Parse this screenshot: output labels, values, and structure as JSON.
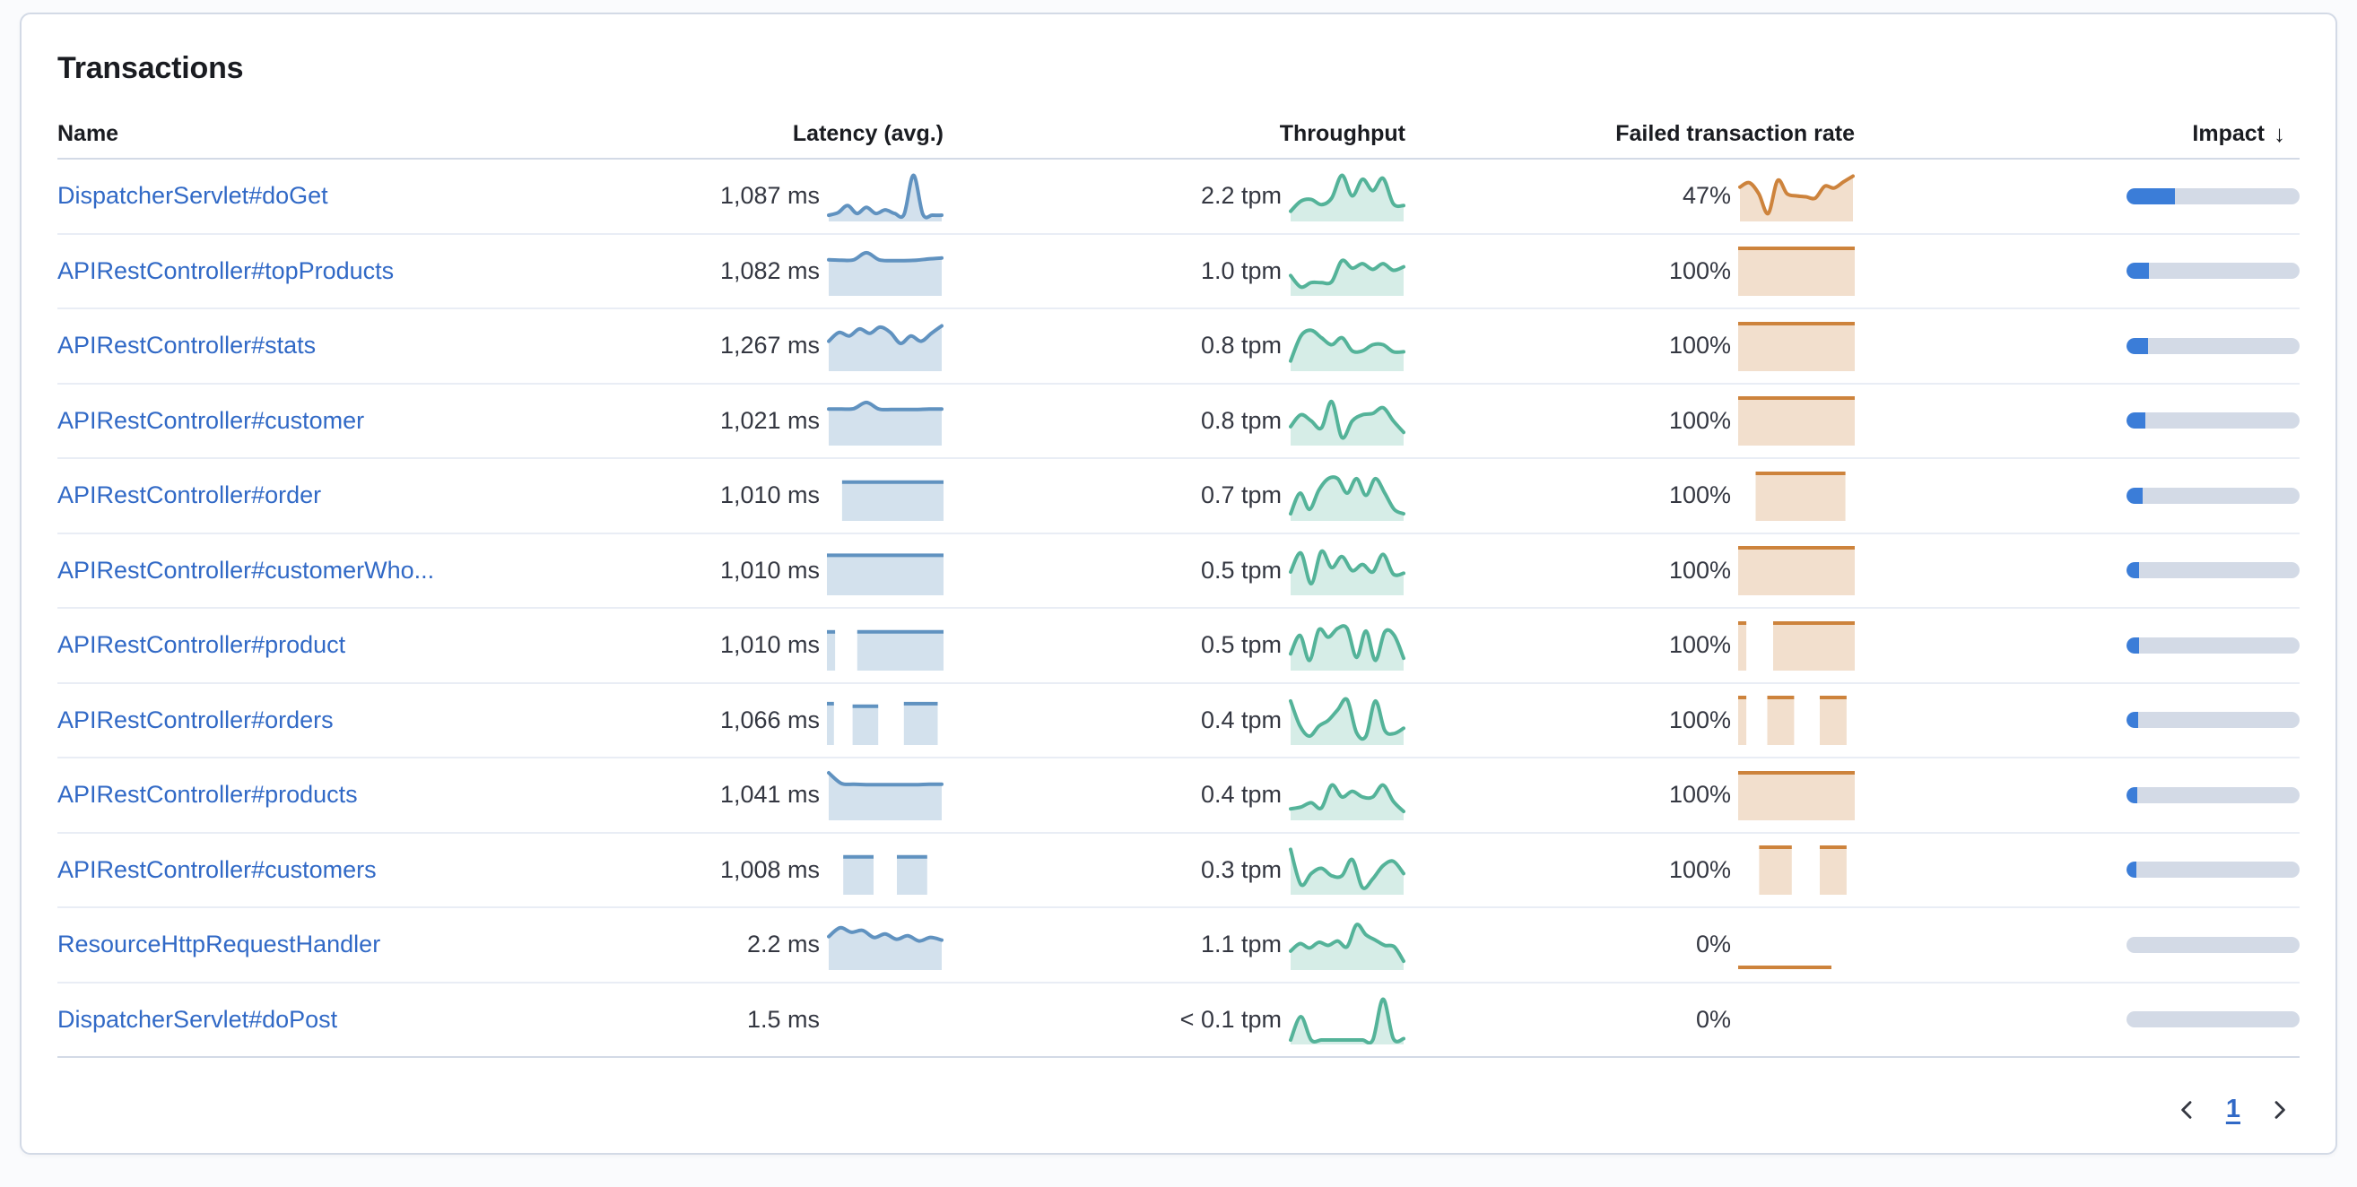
{
  "card": {
    "title": "Transactions"
  },
  "table": {
    "columns": {
      "name": "Name",
      "latency": "Latency (avg.)",
      "throughput": "Throughput",
      "failed_rate": "Failed transaction rate",
      "impact": "Impact",
      "sort_icon": "↓",
      "sort_icon_name": "sort-descending-arrow-icon"
    },
    "rows": [
      {
        "name": "DispatcherServlet#doGet",
        "latency": "1,087 ms",
        "throughput": "2.2 tpm",
        "failed_rate": "47%",
        "impact_pct": 28,
        "sparklines": {
          "latency": {
            "values": [
              0.06,
              0.12,
              0.28,
              0.1,
              0.24,
              0.1,
              0.18,
              0.1,
              0.08,
              0.97,
              0.08,
              0.06,
              0.06
            ]
          },
          "throughput": {
            "values": [
              0.15,
              0.38,
              0.42,
              0.3,
              0.45,
              0.97,
              0.5,
              0.88,
              0.62,
              0.9,
              0.32,
              0.28
            ]
          },
          "failed_rate": {
            "values": [
              0.7,
              0.8,
              0.55,
              0.1,
              0.85,
              0.55,
              0.5,
              0.48,
              0.45,
              0.72,
              0.68,
              0.82,
              0.95
            ]
          }
        }
      },
      {
        "name": "APIRestController#topProducts",
        "latency": "1,082 ms",
        "throughput": "1.0 tpm",
        "failed_rate": "100%",
        "impact_pct": 13,
        "sparklines": {
          "latency": {
            "values": [
              0.74,
              0.73,
              0.74,
              0.9,
              0.74,
              0.72,
              0.72,
              0.73,
              0.76,
              0.78
            ]
          },
          "throughput": {
            "values": [
              0.38,
              0.12,
              0.22,
              0.22,
              0.24,
              0.72,
              0.55,
              0.65,
              0.52,
              0.65,
              0.5,
              0.58
            ]
          },
          "failed_rate": {
            "segments": [
              {
                "from": 0,
                "to": 1,
                "level": 1
              }
            ]
          }
        }
      },
      {
        "name": "APIRestController#stats",
        "latency": "1,267 ms",
        "throughput": "0.8 tpm",
        "failed_rate": "100%",
        "impact_pct": 12.5,
        "sparklines": {
          "latency": {
            "values": [
              0.6,
              0.8,
              0.72,
              0.88,
              0.78,
              0.92,
              0.8,
              0.55,
              0.72,
              0.6,
              0.78,
              0.95
            ]
          },
          "throughput": {
            "values": [
              0.15,
              0.72,
              0.85,
              0.68,
              0.52,
              0.68,
              0.38,
              0.38,
              0.52,
              0.52,
              0.36,
              0.36
            ]
          },
          "failed_rate": {
            "segments": [
              {
                "from": 0,
                "to": 1,
                "level": 1
              }
            ]
          }
        }
      },
      {
        "name": "APIRestController#customer",
        "latency": "1,021 ms",
        "throughput": "0.8 tpm",
        "failed_rate": "100%",
        "impact_pct": 11,
        "sparklines": {
          "latency": {
            "values": [
              0.75,
              0.75,
              0.76,
              0.9,
              0.75,
              0.74,
              0.74,
              0.74,
              0.75,
              0.75
            ]
          },
          "throughput": {
            "values": [
              0.35,
              0.62,
              0.48,
              0.32,
              0.92,
              0.1,
              0.48,
              0.62,
              0.65,
              0.78,
              0.48,
              0.22
            ]
          },
          "failed_rate": {
            "segments": [
              {
                "from": 0,
                "to": 1,
                "level": 1
              }
            ]
          }
        }
      },
      {
        "name": "APIRestController#order",
        "latency": "1,010 ms",
        "throughput": "0.7 tpm",
        "failed_rate": "100%",
        "impact_pct": 9.5,
        "sparklines": {
          "latency": {
            "segments": [
              {
                "from": 0.13,
                "to": 1,
                "level": 0.8
              }
            ]
          },
          "throughput": {
            "values": [
              0.08,
              0.55,
              0.18,
              0.62,
              0.88,
              0.88,
              0.55,
              0.88,
              0.5,
              0.88,
              0.55,
              0.18,
              0.08
            ]
          },
          "failed_rate": {
            "segments": [
              {
                "from": 0.15,
                "to": 0.92,
                "level": 1
              }
            ]
          }
        }
      },
      {
        "name": "APIRestController#customerWho...",
        "latency": "1,010 ms",
        "throughput": "0.5 tpm",
        "failed_rate": "100%",
        "impact_pct": 7,
        "sparklines": {
          "latency": {
            "segments": [
              {
                "from": 0,
                "to": 1,
                "level": 0.83
              }
            ]
          },
          "throughput": {
            "values": [
              0.45,
              0.88,
              0.18,
              0.92,
              0.55,
              0.8,
              0.48,
              0.62,
              0.45,
              0.85,
              0.4,
              0.42
            ]
          },
          "failed_rate": {
            "segments": [
              {
                "from": 0,
                "to": 1,
                "level": 1
              }
            ]
          }
        }
      },
      {
        "name": "APIRestController#product",
        "latency": "1,010 ms",
        "throughput": "0.5 tpm",
        "failed_rate": "100%",
        "impact_pct": 7,
        "sparklines": {
          "latency": {
            "segments": [
              {
                "from": 0,
                "to": 0.07,
                "level": 0.8
              },
              {
                "from": 0.26,
                "to": 1,
                "level": 0.8
              }
            ]
          },
          "throughput": {
            "values": [
              0.3,
              0.72,
              0.15,
              0.85,
              0.68,
              0.88,
              0.88,
              0.22,
              0.82,
              0.15,
              0.8,
              0.72,
              0.2
            ]
          },
          "failed_rate": {
            "segments": [
              {
                "from": 0,
                "to": 0.07,
                "level": 1
              },
              {
                "from": 0.3,
                "to": 1,
                "level": 1
              }
            ]
          }
        }
      },
      {
        "name": "APIRestController#orders",
        "latency": "1,066 ms",
        "throughput": "0.4 tpm",
        "failed_rate": "100%",
        "impact_pct": 6.5,
        "sparklines": {
          "latency": {
            "segments": [
              {
                "from": 0,
                "to": 0.06,
                "level": 0.86
              },
              {
                "from": 0.22,
                "to": 0.44,
                "level": 0.8
              },
              {
                "from": 0.66,
                "to": 0.95,
                "level": 0.86
              }
            ]
          },
          "throughput": {
            "values": [
              0.92,
              0.35,
              0.12,
              0.35,
              0.48,
              0.72,
              0.95,
              0.2,
              0.12,
              0.92,
              0.25,
              0.18,
              0.3
            ]
          },
          "failed_rate": {
            "segments": [
              {
                "from": 0,
                "to": 0.07,
                "level": 1
              },
              {
                "from": 0.25,
                "to": 0.48,
                "level": 1
              },
              {
                "from": 0.7,
                "to": 0.93,
                "level": 1
              }
            ]
          }
        }
      },
      {
        "name": "APIRestController#products",
        "latency": "1,041 ms",
        "throughput": "0.4 tpm",
        "failed_rate": "100%",
        "impact_pct": 6,
        "sparklines": {
          "latency": {
            "values": [
              1.0,
              0.76,
              0.74,
              0.73,
              0.73,
              0.73,
              0.73,
              0.73,
              0.74,
              0.74
            ]
          },
          "throughput": {
            "values": [
              0.18,
              0.22,
              0.32,
              0.2,
              0.72,
              0.45,
              0.58,
              0.45,
              0.45,
              0.72,
              0.35,
              0.12
            ]
          },
          "failed_rate": {
            "segments": [
              {
                "from": 0,
                "to": 1,
                "level": 1
              }
            ]
          }
        }
      },
      {
        "name": "APIRestController#customers",
        "latency": "1,008 ms",
        "throughput": "0.3 tpm",
        "failed_rate": "100%",
        "impact_pct": 5.5,
        "sparklines": {
          "latency": {
            "segments": [
              {
                "from": 0.14,
                "to": 0.4,
                "level": 0.78
              },
              {
                "from": 0.6,
                "to": 0.86,
                "level": 0.78
              }
            ]
          },
          "throughput": {
            "values": [
              0.95,
              0.15,
              0.4,
              0.52,
              0.35,
              0.35,
              0.72,
              0.08,
              0.28,
              0.58,
              0.68,
              0.4
            ]
          },
          "failed_rate": {
            "segments": [
              {
                "from": 0.18,
                "to": 0.46,
                "level": 1
              },
              {
                "from": 0.7,
                "to": 0.93,
                "level": 1
              }
            ]
          }
        }
      },
      {
        "name": "ResourceHttpRequestHandler",
        "latency": "2.2 ms",
        "throughput": "1.1 tpm",
        "failed_rate": "0%",
        "impact_pct": 0,
        "sparklines": {
          "latency": {
            "values": [
              0.68,
              0.88,
              0.78,
              0.82,
              0.66,
              0.74,
              0.62,
              0.7,
              0.58,
              0.66,
              0.6
            ]
          },
          "throughput": {
            "values": [
              0.35,
              0.52,
              0.42,
              0.55,
              0.48,
              0.58,
              0.45,
              0.95,
              0.72,
              0.6,
              0.48,
              0.45,
              0.12
            ]
          },
          "failed_rate": {
            "segments": [
              {
                "from": 0,
                "to": 0.8,
                "level": 0.02
              }
            ]
          }
        }
      },
      {
        "name": "DispatcherServlet#doPost",
        "latency": "1.5 ms",
        "throughput": "< 0.1 tpm",
        "failed_rate": "0%",
        "impact_pct": 0,
        "sparklines": {
          "latency": null,
          "throughput": {
            "values": [
              0.02,
              0.55,
              0.02,
              0.02,
              0.02,
              0.02,
              0.02,
              0.02,
              0.02,
              0.95,
              0.05,
              0.05
            ]
          },
          "failed_rate": null
        }
      }
    ]
  },
  "pagination": {
    "page": "1",
    "prev_icon_name": "chevron-left-icon",
    "next_icon_name": "chevron-right-icon"
  },
  "colors": {
    "latency_stroke": "#6092c0",
    "latency_fill": "rgba(96,146,192,0.28)",
    "throughput_stroke": "#54b399",
    "throughput_fill": "rgba(84,179,153,0.24)",
    "failed_stroke": "#cd833c",
    "failed_fill": "rgba(205,131,60,0.26)",
    "impact_fill": "#3b7dd8",
    "impact_track": "#d3dae6",
    "link": "#3169c6"
  }
}
